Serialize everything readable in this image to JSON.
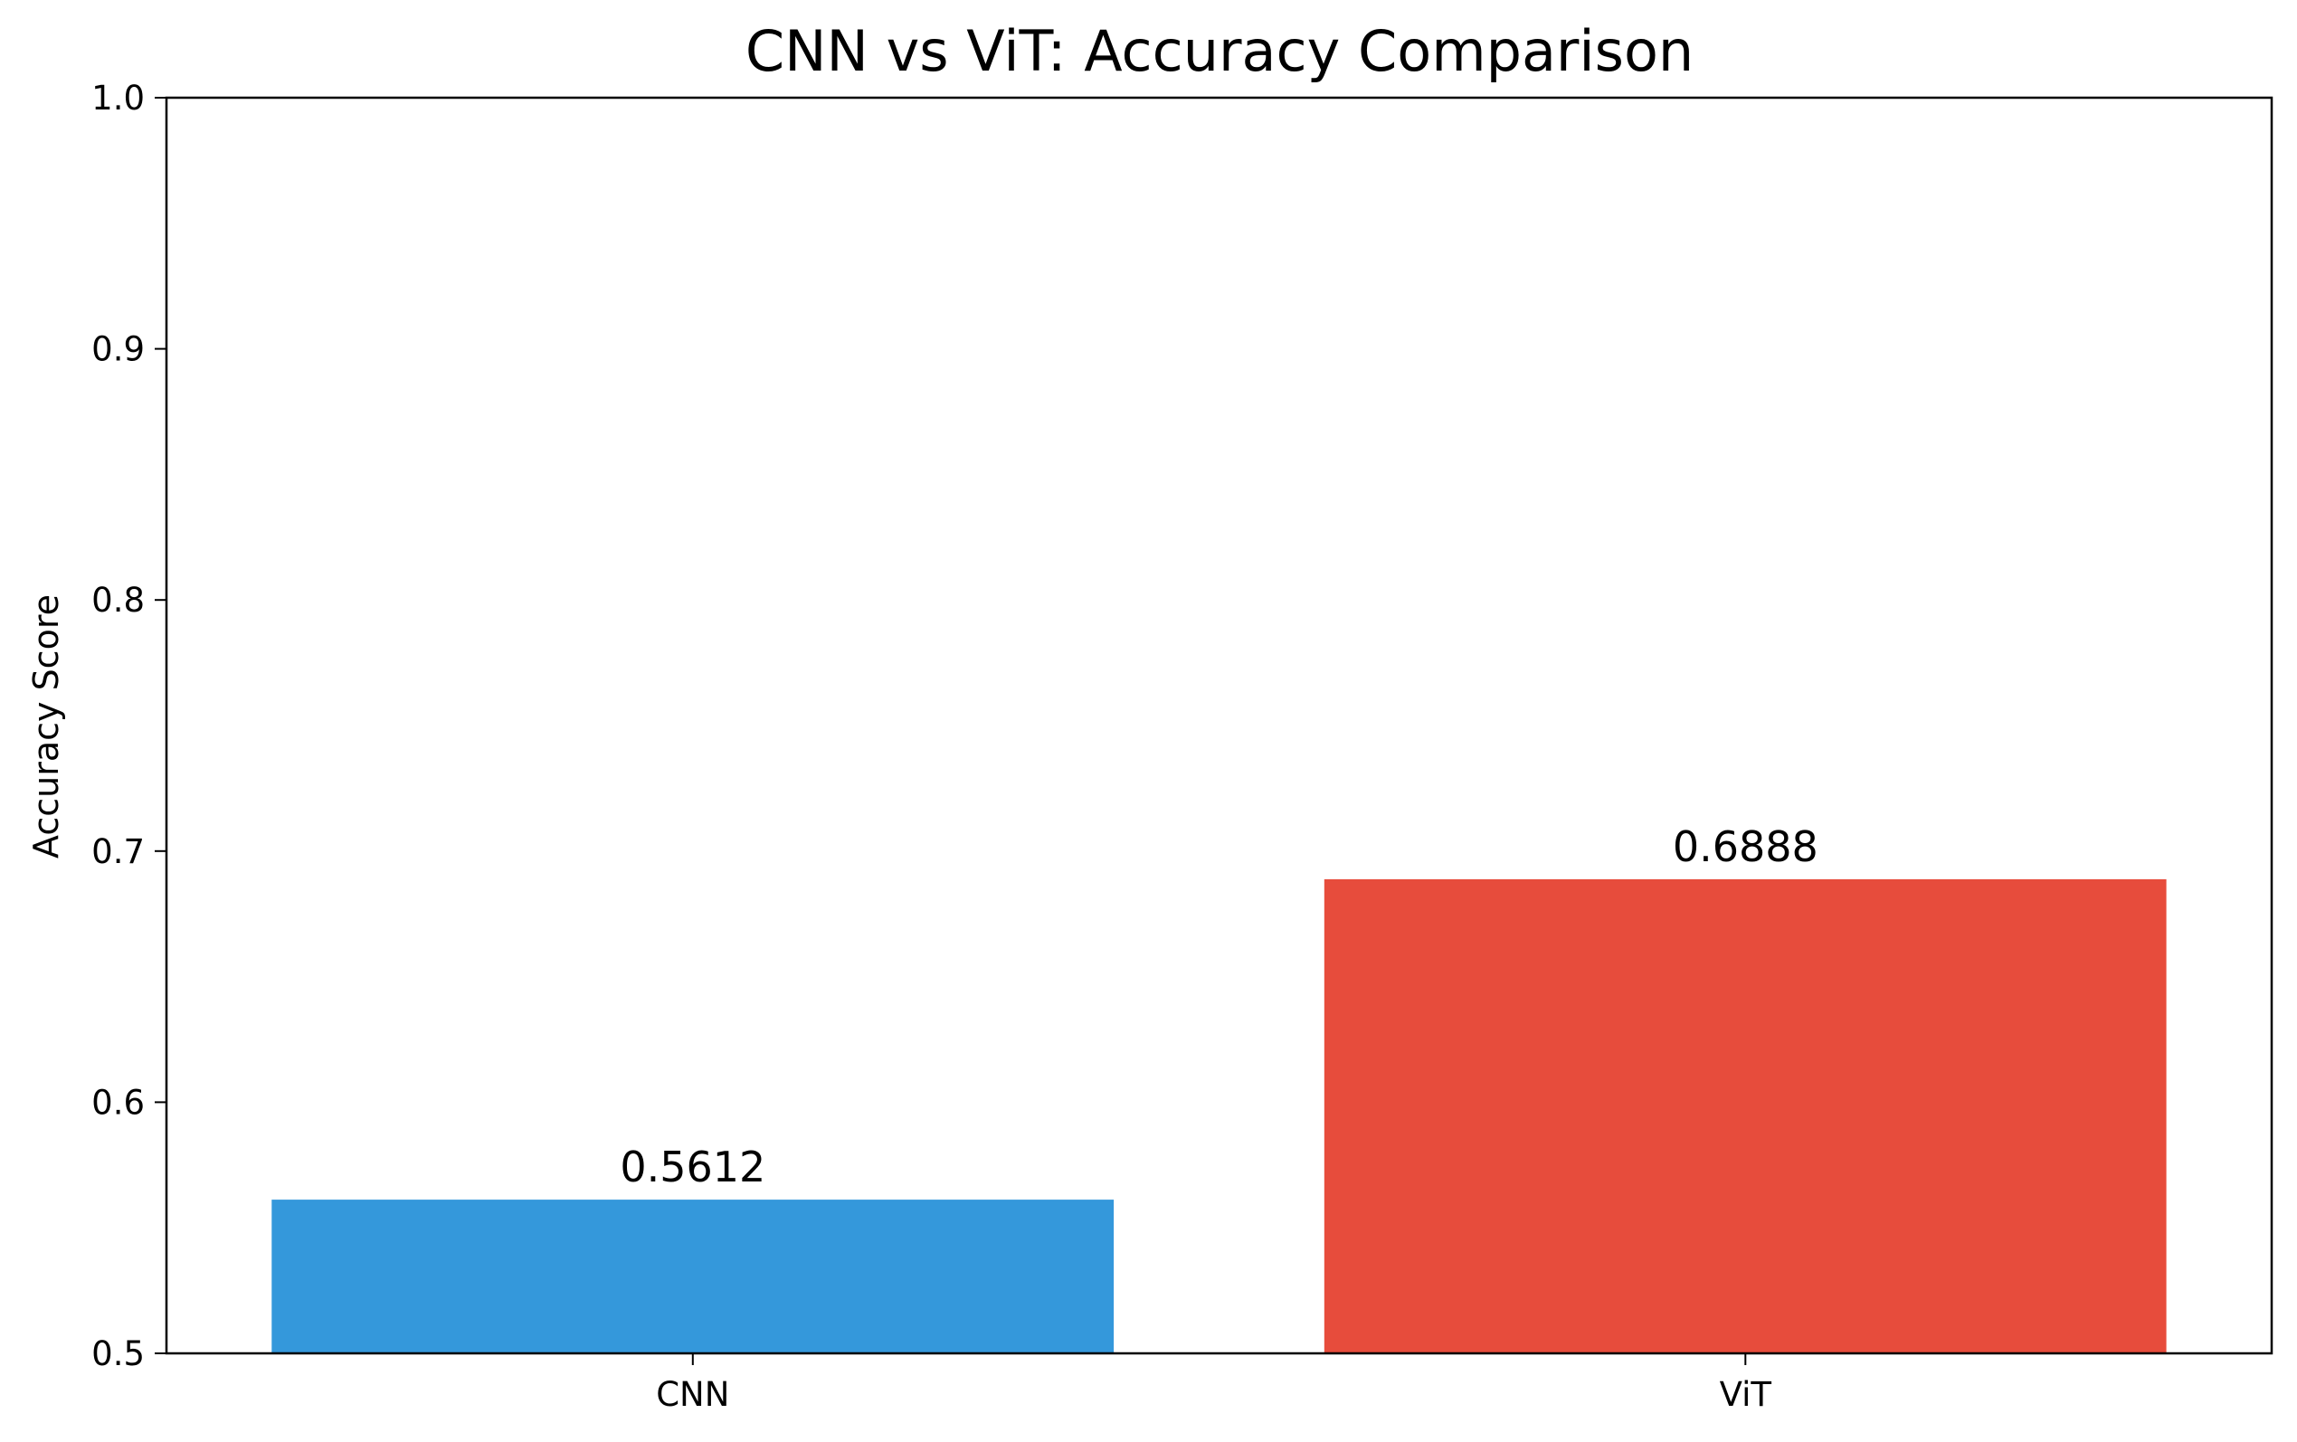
{
  "chart_data": {
    "type": "bar",
    "title": "CNN vs ViT: Accuracy Comparison",
    "xlabel": "",
    "ylabel": "Accuracy Score",
    "categories": [
      "CNN",
      "ViT"
    ],
    "values": [
      0.5612,
      0.6888
    ],
    "value_labels": [
      "0.5612",
      "0.6888"
    ],
    "colors": [
      "#3498db",
      "#e74c3c"
    ],
    "ylim": [
      0.5,
      1.0
    ],
    "yticks": [
      0.5,
      0.6,
      0.7,
      0.8,
      0.9,
      1.0
    ],
    "ytick_labels": [
      "0.5",
      "0.6",
      "0.7",
      "0.8",
      "0.9",
      "1.0"
    ],
    "grid": false,
    "legend": "none"
  }
}
